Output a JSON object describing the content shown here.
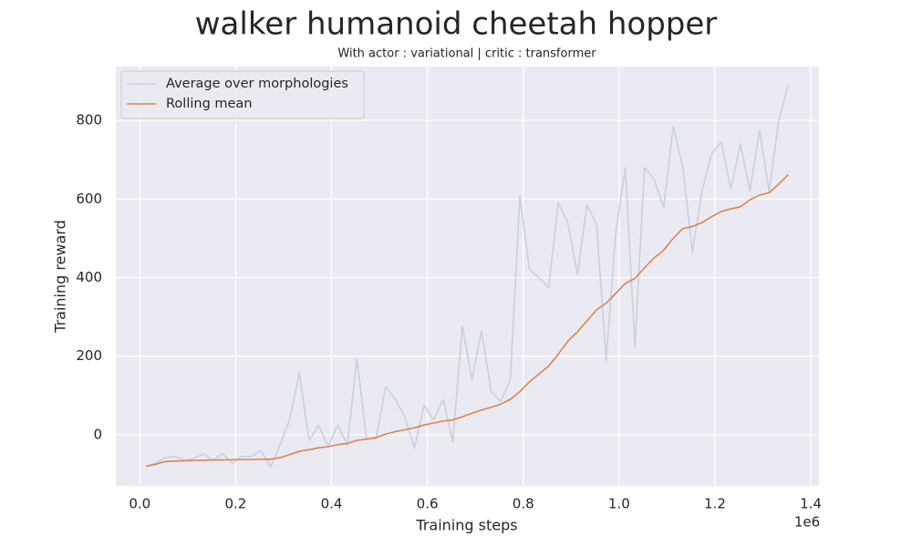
{
  "chart_data": {
    "type": "line",
    "title": "walker humanoid cheetah hopper",
    "subtitle": "With actor : variational | critic : transformer",
    "x_label": "Training steps",
    "y_label": "Training reward",
    "x_offset_label": "1e6",
    "x": [
      0.013,
      0.033,
      0.053,
      0.073,
      0.093,
      0.113,
      0.133,
      0.153,
      0.173,
      0.193,
      0.213,
      0.233,
      0.253,
      0.273,
      0.293,
      0.313,
      0.333,
      0.353,
      0.373,
      0.393,
      0.413,
      0.433,
      0.453,
      0.473,
      0.493,
      0.513,
      0.533,
      0.553,
      0.573,
      0.593,
      0.613,
      0.633,
      0.653,
      0.673,
      0.693,
      0.713,
      0.733,
      0.753,
      0.773,
      0.793,
      0.813,
      0.833,
      0.853,
      0.873,
      0.893,
      0.913,
      0.933,
      0.953,
      0.973,
      0.993,
      1.013,
      1.033,
      1.053,
      1.073,
      1.093,
      1.113,
      1.133,
      1.153,
      1.173,
      1.193,
      1.213,
      1.233,
      1.253,
      1.273,
      1.293,
      1.313,
      1.333,
      1.353
    ],
    "series": [
      {
        "name": "Average over morphologies",
        "color": "#c9d0df",
        "values": [
          -80,
          -72,
          -58,
          -55,
          -65,
          -60,
          -48,
          -65,
          -48,
          -72,
          -55,
          -55,
          -40,
          -82,
          -25,
          40,
          158,
          -15,
          25,
          -30,
          25,
          -25,
          193,
          -10,
          -10,
          122,
          90,
          45,
          -33,
          75,
          38,
          90,
          -18,
          278,
          140,
          265,
          110,
          85,
          140,
          608,
          420,
          400,
          375,
          590,
          540,
          408,
          585,
          535,
          190,
          515,
          680,
          225,
          680,
          650,
          578,
          785,
          680,
          465,
          620,
          715,
          745,
          625,
          740,
          620,
          775,
          620,
          800,
          890
        ]
      },
      {
        "name": "Rolling mean",
        "color": "#dd8452",
        "values": [
          -80,
          -75,
          -68,
          -67,
          -66,
          -65,
          -65,
          -64,
          -64,
          -63,
          -63,
          -63,
          -62,
          -62,
          -58,
          -50,
          -42,
          -38,
          -33,
          -30,
          -25,
          -22,
          -14,
          -11,
          -7,
          2,
          8,
          13,
          18,
          25,
          30,
          35,
          38,
          46,
          55,
          63,
          70,
          78,
          90,
          110,
          135,
          155,
          175,
          205,
          238,
          262,
          290,
          318,
          335,
          360,
          385,
          398,
          425,
          450,
          470,
          500,
          525,
          530,
          540,
          555,
          568,
          575,
          580,
          598,
          610,
          616,
          638,
          662
        ]
      }
    ],
    "xlim": [
      -0.05,
      1.417
    ],
    "ylim": [
      -130,
      937
    ],
    "xticks": [
      {
        "value": 0,
        "label": "0.0"
      },
      0.2,
      0.4,
      0.6,
      0.8,
      {
        "value": 1,
        "label": "1.0"
      },
      1.2,
      1.4
    ],
    "yticks": [
      0,
      200,
      400,
      600,
      800
    ],
    "grid": true,
    "legend": "upper-left"
  }
}
